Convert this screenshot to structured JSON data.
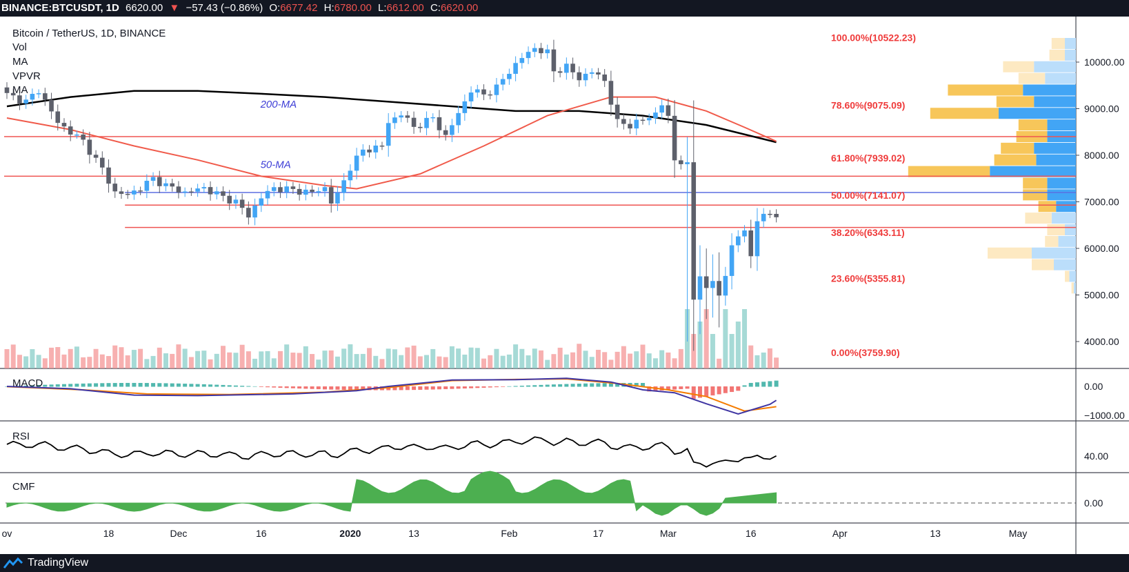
{
  "header": {
    "symbol": "BINANCE:BTCUSDT, 1D",
    "price": "6620.00",
    "arrow": "▼",
    "change": "−57.43 (−0.86%)",
    "o_label": "O:",
    "o": "6677.42",
    "h_label": "H:",
    "h": "6780.00",
    "l_label": "L:",
    "l": "6612.00",
    "c_label": "C:",
    "c": "6620.00"
  },
  "legend": {
    "title": "Bitcoin / TetherUS, 1D, BINANCE",
    "items": [
      "Vol",
      "MA",
      "VPVR",
      "MA"
    ]
  },
  "pane_labels": {
    "macd": "MACD",
    "rsi": "RSI",
    "cmf": "CMF"
  },
  "footer": {
    "brand": "TradingView"
  },
  "colors": {
    "up": "#42a5f5",
    "down": "#5d606b",
    "red_line": "#ef5350",
    "blue_line": "#5b6ee1",
    "ma200": "#000000",
    "ma50": "#f05a4a",
    "vpvr_up": "#42a5f5",
    "vpvr_down": "#f7c65a",
    "macd_line": "#3f35a3",
    "signal_line": "#f57c00",
    "cmf_fill": "#4caf50",
    "bg_dark": "#131722"
  },
  "chart_data": {
    "type": "candlestick",
    "title": "Bitcoin / TetherUS, 1D, BINANCE",
    "x_ticks": [
      "ov",
      "18",
      "Dec",
      "16",
      "2020",
      "13",
      "Feb",
      "17",
      "Mar",
      "16",
      "Apr",
      "13",
      "May"
    ],
    "price_axis": {
      "ticks": [
        "10000.00",
        "9000.00",
        "8000.00",
        "7000.00",
        "6000.00",
        "5000.00",
        "4000.00"
      ],
      "range": [
        3650,
        10700
      ]
    },
    "fib_levels": [
      {
        "label": "100.00%(10522.23)",
        "value": 10522.23
      },
      {
        "label": "78.60%(9075.09)",
        "value": 9075.09
      },
      {
        "label": "61.80%(7939.02)",
        "value": 7939.02
      },
      {
        "label": "50.00%(7141.07)",
        "value": 7141.07
      },
      {
        "label": "38.20%(6343.11)",
        "value": 6343.11
      },
      {
        "label": "23.60%(5355.81)",
        "value": 5355.81
      },
      {
        "label": "0.00%(3759.90)",
        "value": 3759.9
      }
    ],
    "horizontal_lines": [
      {
        "value": 8400,
        "color": "red",
        "from_day": 0
      },
      {
        "value": 7550,
        "color": "red",
        "from_day": 0
      },
      {
        "value": 7200,
        "color": "blue",
        "from_day": 19
      },
      {
        "value": 6930,
        "color": "red",
        "from_day": 19
      },
      {
        "value": 6450,
        "color": "red",
        "from_day": 19
      }
    ],
    "ma_annotations": [
      {
        "label": "200-MA",
        "day": 39,
        "value": 9100
      },
      {
        "label": "50-MA",
        "day": 39,
        "value": 7800
      }
    ],
    "anchors": [
      [
        0,
        9300
      ],
      [
        3,
        9150
      ],
      [
        5,
        9400
      ],
      [
        8,
        8700
      ],
      [
        12,
        8300
      ],
      [
        15,
        7700
      ],
      [
        17,
        7200
      ],
      [
        19,
        7150
      ],
      [
        21,
        7300
      ],
      [
        23,
        7500
      ],
      [
        25,
        7350
      ],
      [
        28,
        7200
      ],
      [
        31,
        7300
      ],
      [
        34,
        7100
      ],
      [
        36,
        7000
      ],
      [
        38,
        6700
      ],
      [
        40,
        7100
      ],
      [
        42,
        7300
      ],
      [
        45,
        7250
      ],
      [
        48,
        7200
      ],
      [
        50,
        7300
      ],
      [
        51,
        7000
      ],
      [
        52,
        7150
      ],
      [
        54,
        7750
      ],
      [
        56,
        8100
      ],
      [
        59,
        8200
      ],
      [
        60,
        8700
      ],
      [
        62,
        8900
      ],
      [
        64,
        8600
      ],
      [
        67,
        8800
      ],
      [
        69,
        8400
      ],
      [
        71,
        8900
      ],
      [
        73,
        9400
      ],
      [
        75,
        9300
      ],
      [
        77,
        9450
      ],
      [
        79,
        9800
      ],
      [
        81,
        10100
      ],
      [
        83,
        10300
      ],
      [
        85,
        10200
      ],
      [
        86,
        9800
      ],
      [
        88,
        9900
      ],
      [
        90,
        9650
      ],
      [
        92,
        9800
      ],
      [
        94,
        9600
      ],
      [
        96,
        8700
      ],
      [
        98,
        8650
      ],
      [
        100,
        8750
      ],
      [
        102,
        8900
      ],
      [
        103,
        9100
      ],
      [
        104,
        8800
      ],
      [
        105,
        7900
      ],
      [
        107,
        7850
      ],
      [
        108,
        4900
      ],
      [
        109,
        5400
      ],
      [
        110,
        5150
      ],
      [
        111,
        5300
      ],
      [
        112,
        5000
      ],
      [
        113,
        5400
      ],
      [
        114,
        6100
      ],
      [
        115,
        6200
      ],
      [
        116,
        6400
      ],
      [
        117,
        5900
      ],
      [
        118,
        6500
      ],
      [
        119,
        6750
      ],
      [
        120,
        6800
      ],
      [
        121,
        6620
      ]
    ],
    "day_count": 122,
    "volume": {
      "units": "relative",
      "spike_days": [
        107,
        108,
        109,
        110,
        111,
        113,
        114,
        115,
        116
      ],
      "values_note": ""
    },
    "vpvr_profile": [
      {
        "price": 10400,
        "up": 0.05,
        "down": 0.06
      },
      {
        "price": 10150,
        "up": 0.05,
        "down": 0.07
      },
      {
        "price": 9900,
        "up": 0.19,
        "down": 0.14
      },
      {
        "price": 9650,
        "up": 0.14,
        "down": 0.12
      },
      {
        "price": 9400,
        "up": 0.24,
        "down": 0.34
      },
      {
        "price": 9150,
        "up": 0.19,
        "down": 0.17
      },
      {
        "price": 8900,
        "up": 0.35,
        "down": 0.31
      },
      {
        "price": 8650,
        "up": 0.13,
        "down": 0.13
      },
      {
        "price": 8400,
        "up": 0.13,
        "down": 0.14
      },
      {
        "price": 8150,
        "up": 0.19,
        "down": 0.15
      },
      {
        "price": 7900,
        "up": 0.18,
        "down": 0.19
      },
      {
        "price": 7650,
        "up": 0.39,
        "down": 0.37
      },
      {
        "price": 7400,
        "up": 0.13,
        "down": 0.11
      },
      {
        "price": 7150,
        "up": 0.13,
        "down": 0.11
      },
      {
        "price": 6900,
        "up": 0.09,
        "down": 0.08
      },
      {
        "price": 6650,
        "up": 0.11,
        "down": 0.12
      },
      {
        "price": 6400,
        "up": 0.05,
        "down": 0.08
      },
      {
        "price": 6150,
        "up": 0.08,
        "down": 0.06
      },
      {
        "price": 5900,
        "up": 0.2,
        "down": 0.2
      },
      {
        "price": 5650,
        "up": 0.1,
        "down": 0.1
      },
      {
        "price": 5400,
        "up": 0.03,
        "down": 0.02
      },
      {
        "price": 5150,
        "up": 0.01,
        "down": 0.01
      }
    ],
    "macd": {
      "ticks": [
        "0.00",
        "−1000.00"
      ],
      "range": [
        -1400,
        350
      ]
    },
    "rsi": {
      "ticks": [
        "40.00"
      ],
      "range": [
        20,
        80
      ]
    },
    "cmf": {
      "ticks": [
        "0.00"
      ],
      "range": [
        -0.3,
        0.45
      ]
    }
  }
}
